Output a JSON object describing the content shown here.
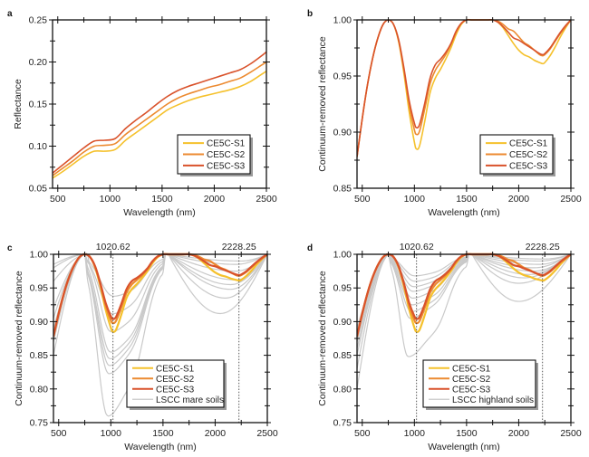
{
  "figure": {
    "colors": {
      "CE5C-S1": "#f5c12c",
      "CE5C-S2": "#ec8a30",
      "CE5C-S3": "#d9522b",
      "LSCC mare soils": "#c9c9c9",
      "LSCC highland soils": "#c9c9c9",
      "axis": "#111111",
      "marker_line": "#444444"
    }
  },
  "chart_data": [
    {
      "panel": "a",
      "type": "line",
      "title": "",
      "xlabel": "Wavelength (nm)",
      "ylabel": "Reflectance",
      "xlim": [
        450,
        2500
      ],
      "ylim": [
        0.05,
        0.25
      ],
      "xticks": [
        500,
        1000,
        1500,
        2000,
        2500
      ],
      "xtick_labels": [
        "500",
        "1000",
        "1500",
        "2000",
        "2500"
      ],
      "yticks": [
        0.05,
        0.1,
        0.15,
        0.2,
        0.25
      ],
      "ytick_labels": [
        "0.05",
        "0.10",
        "0.15",
        "0.20",
        "0.25"
      ],
      "grid": false,
      "legend": {
        "position": "lower-right",
        "entries": [
          "CE5C-S1",
          "CE5C-S2",
          "CE5C-S3"
        ]
      },
      "x": [
        450,
        550,
        650,
        750,
        850,
        950,
        1050,
        1150,
        1250,
        1350,
        1450,
        1550,
        1650,
        1750,
        1850,
        1950,
        2050,
        2150,
        2250,
        2350,
        2450,
        2500
      ],
      "series": [
        {
          "name": "CE5C-S1",
          "values": [
            0.062,
            0.07,
            0.079,
            0.088,
            0.094,
            0.094,
            0.096,
            0.107,
            0.116,
            0.125,
            0.134,
            0.143,
            0.149,
            0.154,
            0.158,
            0.161,
            0.164,
            0.167,
            0.171,
            0.177,
            0.185,
            0.189
          ]
        },
        {
          "name": "CE5C-S2",
          "values": [
            0.065,
            0.074,
            0.083,
            0.093,
            0.1,
            0.101,
            0.103,
            0.114,
            0.123,
            0.132,
            0.141,
            0.15,
            0.157,
            0.162,
            0.166,
            0.17,
            0.173,
            0.177,
            0.181,
            0.188,
            0.196,
            0.2
          ]
        },
        {
          "name": "CE5C-S3",
          "values": [
            0.068,
            0.078,
            0.088,
            0.098,
            0.106,
            0.107,
            0.109,
            0.121,
            0.131,
            0.14,
            0.15,
            0.159,
            0.166,
            0.171,
            0.175,
            0.179,
            0.183,
            0.187,
            0.191,
            0.198,
            0.207,
            0.212
          ]
        }
      ]
    },
    {
      "panel": "b",
      "type": "line",
      "title": "",
      "xlabel": "Wavelength  (nm)",
      "ylabel": "Continuum-removed reflectance",
      "xlim": [
        450,
        2500
      ],
      "ylim": [
        0.85,
        1.0
      ],
      "xticks": [
        500,
        1000,
        1500,
        2000,
        2500
      ],
      "xtick_labels": [
        "500",
        "1000",
        "1500",
        "2000",
        "2500"
      ],
      "yticks": [
        0.85,
        0.9,
        0.95,
        1.0
      ],
      "ytick_labels": [
        "0.85",
        "0.90",
        "0.95",
        "1.00"
      ],
      "grid": false,
      "legend": {
        "position": "lower-right",
        "entries": [
          "CE5C-S1",
          "CE5C-S2",
          "CE5C-S3"
        ]
      },
      "x": [
        450,
        500,
        550,
        600,
        650,
        700,
        750,
        800,
        850,
        900,
        950,
        1000,
        1020,
        1050,
        1100,
        1150,
        1200,
        1250,
        1300,
        1350,
        1400,
        1450,
        1500,
        1550,
        1600,
        1700,
        1750,
        1800,
        1850,
        1900,
        1950,
        2000,
        2050,
        2100,
        2150,
        2200,
        2230,
        2250,
        2300,
        2350,
        2400,
        2450,
        2500
      ],
      "series": [
        {
          "name": "CE5C-S1",
          "values": [
            0.878,
            0.912,
            0.942,
            0.966,
            0.984,
            0.996,
            1.0,
            0.996,
            0.98,
            0.952,
            0.918,
            0.891,
            0.885,
            0.888,
            0.91,
            0.935,
            0.948,
            0.956,
            0.965,
            0.975,
            0.987,
            0.996,
            1.0,
            1.0,
            1.0,
            1.0,
            1.0,
            0.998,
            0.993,
            0.986,
            0.979,
            0.973,
            0.969,
            0.967,
            0.964,
            0.962,
            0.961,
            0.962,
            0.968,
            0.976,
            0.985,
            0.993,
            1.0
          ]
        },
        {
          "name": "CE5C-S2",
          "values": [
            0.878,
            0.912,
            0.942,
            0.966,
            0.984,
            0.996,
            1.0,
            0.996,
            0.981,
            0.955,
            0.924,
            0.902,
            0.898,
            0.901,
            0.921,
            0.943,
            0.955,
            0.962,
            0.969,
            0.978,
            0.989,
            0.997,
            1.0,
            1.0,
            1.0,
            1.0,
            1.0,
            0.999,
            0.996,
            0.992,
            0.99,
            0.985,
            0.98,
            0.977,
            0.973,
            0.969,
            0.968,
            0.969,
            0.974,
            0.981,
            0.988,
            0.994,
            1.0
          ]
        },
        {
          "name": "CE5C-S3",
          "values": [
            0.878,
            0.912,
            0.942,
            0.966,
            0.984,
            0.996,
            1.0,
            0.996,
            0.982,
            0.957,
            0.928,
            0.908,
            0.904,
            0.907,
            0.926,
            0.948,
            0.96,
            0.965,
            0.971,
            0.979,
            0.99,
            0.997,
            1.0,
            1.0,
            1.0,
            1.0,
            1.0,
            0.998,
            0.994,
            0.989,
            0.984,
            0.982,
            0.979,
            0.976,
            0.973,
            0.97,
            0.969,
            0.97,
            0.975,
            0.982,
            0.989,
            0.995,
            1.0
          ]
        }
      ]
    },
    {
      "panel": "c",
      "type": "line",
      "title": "",
      "xlabel": "Wavelength  (nm)",
      "ylabel": "Continuum-removed reflectance",
      "xlim": [
        450,
        2500
      ],
      "ylim": [
        0.75,
        1.0
      ],
      "xticks": [
        500,
        1000,
        1500,
        2000,
        2500
      ],
      "xtick_labels": [
        "500",
        "1000",
        "1500",
        "2000",
        "2500"
      ],
      "yticks": [
        0.75,
        0.8,
        0.85,
        0.9,
        0.95,
        1.0
      ],
      "ytick_labels": [
        "0.75",
        "0.80",
        "0.85",
        "0.90",
        "0.95",
        "1.00"
      ],
      "grid": false,
      "annotations": [
        {
          "type": "vline",
          "x": 1020.62,
          "label": "1020.62",
          "style": "dotted"
        },
        {
          "type": "vline",
          "x": 2228.25,
          "label": "2228.25",
          "style": "dotted"
        }
      ],
      "legend": {
        "position": "bottom-center",
        "entries": [
          "CE5C-S1",
          "CE5C-S2",
          "CE5C-S3",
          "LSCC mare soils"
        ]
      },
      "reference_group": "LSCC mare soils",
      "reference_series": [
        {
          "min1_x": 970,
          "min1": 0.76,
          "start": 0.85,
          "peak_x": 760,
          "min2_x": 2050,
          "min2": 0.912
        },
        {
          "min1_x": 980,
          "min1": 0.823,
          "start": 0.87,
          "peak_x": 760,
          "min2_x": 2100,
          "min2": 0.935
        },
        {
          "min1_x": 985,
          "min1": 0.835,
          "start": 0.89,
          "peak_x": 760,
          "min2_x": 2150,
          "min2": 0.948
        },
        {
          "min1_x": 990,
          "min1": 0.845,
          "start": 0.905,
          "peak_x": 760,
          "min2_x": 2150,
          "min2": 0.955
        },
        {
          "min1_x": 995,
          "min1": 0.855,
          "start": 0.92,
          "peak_x": 770,
          "min2_x": 2200,
          "min2": 0.962
        },
        {
          "min1_x": 1000,
          "min1": 0.885,
          "start": 0.96,
          "peak_x": 780,
          "min2_x": 2200,
          "min2": 0.975
        },
        {
          "min1_x": 1010,
          "min1": 0.912,
          "start": 0.98,
          "peak_x": 770,
          "min2_x": 2200,
          "min2": 0.985
        },
        {
          "min1_x": 1020,
          "min1": 0.938,
          "start": 0.985,
          "peak_x": 760,
          "min2_x": 2250,
          "min2": 0.99
        }
      ],
      "series_ref": "same CE5C-S1/S2/S3 as panel b"
    },
    {
      "panel": "d",
      "type": "line",
      "title": "",
      "xlabel": "Wavelength  (nm)",
      "ylabel": "Continuum-removed reflectance",
      "xlim": [
        450,
        2500
      ],
      "ylim": [
        0.75,
        1.0
      ],
      "xticks": [
        500,
        1000,
        1500,
        2000,
        2500
      ],
      "xtick_labels": [
        "500",
        "1000",
        "1500",
        "2000",
        "2500"
      ],
      "yticks": [
        0.75,
        0.8,
        0.85,
        0.9,
        0.95,
        1.0
      ],
      "ytick_labels": [
        "0.75",
        "0.80",
        "0.85",
        "0.90",
        "0.95",
        "1.00"
      ],
      "grid": false,
      "annotations": [
        {
          "type": "vline",
          "x": 1020.62,
          "label": "1020.62",
          "style": "dotted"
        },
        {
          "type": "vline",
          "x": 2228.25,
          "label": "2228.25",
          "style": "dotted"
        }
      ],
      "legend": {
        "position": "bottom-right",
        "entries": [
          "CE5C-S1",
          "CE5C-S2",
          "CE5C-S3",
          "LSCC highland soils"
        ]
      },
      "reference_group": "LSCC highland soils",
      "reference_series": [
        {
          "min1_x": 940,
          "min1": 0.848,
          "start": 0.8,
          "peak_x": 770,
          "min2_x": 2000,
          "min2": 0.93
        },
        {
          "min1_x": 960,
          "min1": 0.905,
          "start": 0.83,
          "peak_x": 770,
          "min2_x": 2000,
          "min2": 0.957
        },
        {
          "min1_x": 970,
          "min1": 0.915,
          "start": 0.85,
          "peak_x": 770,
          "min2_x": 2050,
          "min2": 0.965
        },
        {
          "min1_x": 975,
          "min1": 0.925,
          "start": 0.86,
          "peak_x": 770,
          "min2_x": 2100,
          "min2": 0.97
        },
        {
          "min1_x": 980,
          "min1": 0.935,
          "start": 0.87,
          "peak_x": 770,
          "min2_x": 2150,
          "min2": 0.975
        },
        {
          "min1_x": 985,
          "min1": 0.945,
          "start": 0.875,
          "peak_x": 770,
          "min2_x": 2150,
          "min2": 0.98
        },
        {
          "min1_x": 990,
          "min1": 0.952,
          "start": 0.88,
          "peak_x": 770,
          "min2_x": 2200,
          "min2": 0.985
        },
        {
          "min1_x": 1000,
          "min1": 0.96,
          "start": 0.885,
          "peak_x": 770,
          "min2_x": 2200,
          "min2": 0.99
        },
        {
          "min1_x": 1000,
          "min1": 0.968,
          "start": 0.89,
          "peak_x": 770,
          "min2_x": 2250,
          "min2": 0.993
        }
      ],
      "series_ref": "same CE5C-S1/S2/S3 as panel b"
    }
  ]
}
